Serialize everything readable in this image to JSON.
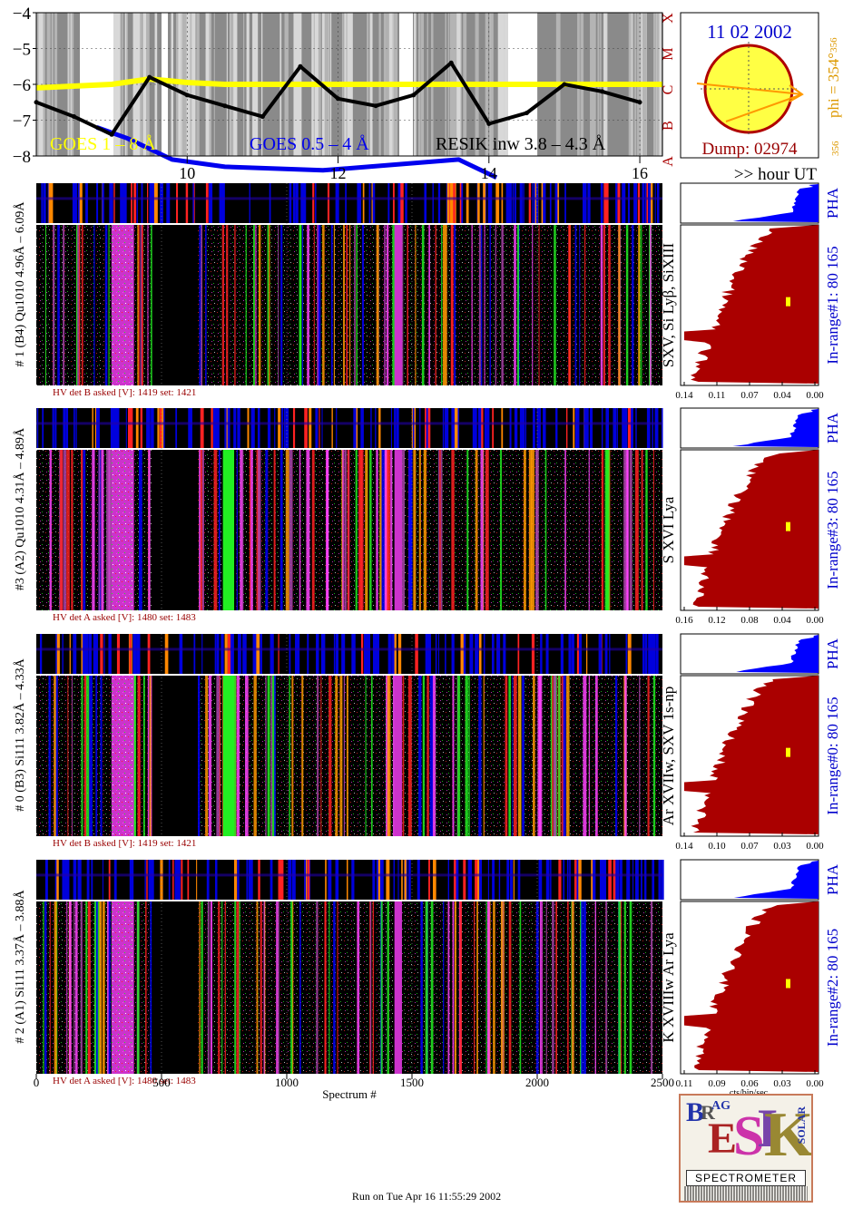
{
  "header": {
    "date": "11 02 2002",
    "dump": "Dump: 02974",
    "phi": "phi = 354°",
    "phi_sub": "356",
    "phi_side": "356",
    "goes_classes": [
      "X",
      "M",
      "C",
      "B",
      "A"
    ],
    "legend": {
      "goes_long": "GOES 1 – 8 Å",
      "goes_short": "GOES 0.5 – 4 Å",
      "resik": "RESIK inw 3.8 – 4.3 Å"
    },
    "colors": {
      "goes_long": "#ffff00",
      "goes_short": "#0000ee",
      "resik": "#000000",
      "sun": "#ffff44",
      "sun_edge": "#b00000",
      "arrow": "#ff9900",
      "hist": "#aa0000",
      "pha": "#0000ff",
      "range_label": "#0000cc"
    }
  },
  "time_axis": {
    "ticks": [
      "10",
      "12",
      "14",
      "16"
    ],
    "unit_label": ">> hour UT"
  },
  "spectrum_axis": {
    "ticks": [
      "0",
      "500",
      "1000",
      "1500",
      "2000",
      "2500"
    ],
    "label": "Spectrum #"
  },
  "cts_label": "cts/bin/sec",
  "pha_label": "PHA",
  "panels": [
    {
      "label": "# 1 (B4) Qu1010 4.96Å – 6.09Å",
      "lines": "SXV, Si Lyβ, SiXIII",
      "hv": "HV det B asked [V]:  1419 set:  1421",
      "range": "In-range#1:  80 165",
      "hist_ticks": [
        "0.14",
        "0.11",
        "0.07",
        "0.04",
        "0.00"
      ]
    },
    {
      "label": "#3 (A2) Qu1010  4.31Å – 4.89Å",
      "lines": "S XVI Lya",
      "hv": "HV det A asked [V]:  1480 set:  1483",
      "range": "In-range#3:  80 165",
      "hist_ticks": [
        "0.16",
        "0.12",
        "0.08",
        "0.04",
        "0.00"
      ]
    },
    {
      "label": "# 0 (B3) Si111  3.82Å – 4.33Å",
      "lines": "Ar XVIIw,  SXV 1s-np",
      "hv": "HV det B asked [V]:  1419 set:  1421",
      "range": "In-range#0:  80 165",
      "hist_ticks": [
        "0.14",
        "0.10",
        "0.07",
        "0.03",
        "0.00"
      ]
    },
    {
      "label": "# 2 (A1) Si111  3.37Å – 3.88Å",
      "lines": "K XVIIIw  Ar Lya",
      "hv": "HV det A asked [V]:  1480 set:  1483",
      "range": "In-range#2:  80 165",
      "hist_ticks": [
        "0.11",
        "0.09",
        "0.06",
        "0.03",
        "0.00"
      ]
    }
  ],
  "logo": {
    "word": "SPECTROMETER",
    "letters": [
      "B",
      "R",
      "AG",
      "E",
      "S",
      "I",
      "K",
      "SOLAR"
    ]
  },
  "footer": "Run on Tue Apr 16 11:55:29 2002",
  "chart_data": [
    {
      "type": "line",
      "title": "",
      "xlabel": "",
      "ylabel": "",
      "ylim": [
        -8,
        -4
      ],
      "y_ticks": [
        -4,
        -5,
        -6,
        -7,
        -8
      ],
      "x_ticks_hour_ut": [
        10,
        12,
        14,
        16
      ],
      "series": [
        {
          "name": "GOES 1 – 8 Å",
          "x": [
            8.0,
            9.0,
            9.5,
            10.0,
            10.5,
            11.0,
            12.0,
            13.0,
            14.0,
            15.0,
            16.0,
            16.3
          ],
          "values": [
            -6.1,
            -6.0,
            -5.85,
            -5.95,
            -6.0,
            -6.0,
            -6.0,
            -6.0,
            -6.0,
            -6.0,
            -6.0,
            -6.0
          ]
        },
        {
          "name": "GOES 0.5 – 4 Å",
          "x": [
            8.8,
            9.2,
            9.8,
            10.5,
            11.8,
            12.4,
            13.6,
            14.1
          ],
          "values": [
            -7.2,
            -7.5,
            -8.1,
            -8.3,
            -8.4,
            -8.3,
            -8.1,
            -8.6
          ]
        },
        {
          "name": "RESIK inw 3.8 – 4.3 Å",
          "x": [
            8.0,
            8.5,
            9.0,
            9.5,
            10.0,
            10.5,
            11.0,
            11.5,
            12.0,
            12.5,
            13.0,
            13.5,
            14.0,
            14.5,
            15.0,
            15.5,
            16.0
          ],
          "values": [
            -6.5,
            -6.9,
            -7.4,
            -5.8,
            -6.3,
            -6.6,
            -6.9,
            -5.5,
            -6.4,
            -6.6,
            -6.3,
            -5.4,
            -7.1,
            -6.8,
            -6.0,
            -6.2,
            -6.5
          ]
        }
      ]
    }
  ]
}
